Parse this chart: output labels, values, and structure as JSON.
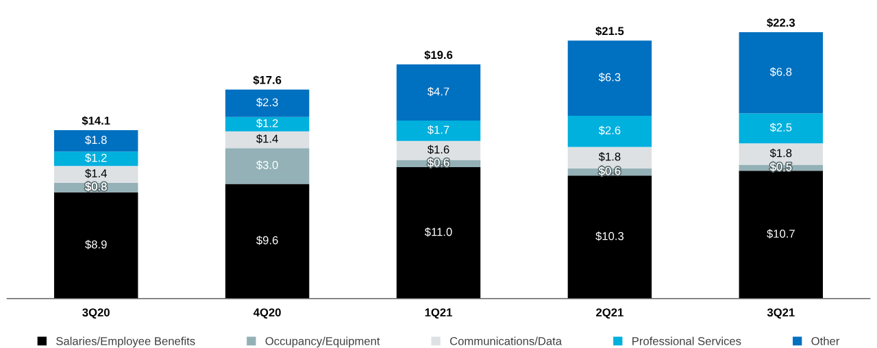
{
  "chart_data": {
    "type": "bar",
    "stacked": true,
    "categories": [
      "3Q20",
      "4Q20",
      "1Q21",
      "2Q21",
      "3Q21"
    ],
    "series": [
      {
        "name": "Salaries/Employee Benefits",
        "color": "#000000",
        "values": [
          8.9,
          9.6,
          11.0,
          10.3,
          10.7
        ],
        "value_labels": [
          "$8.9",
          "$9.6",
          "$11.0",
          "$10.3",
          "$10.7"
        ]
      },
      {
        "name": "Occupancy/Equipment",
        "color": "#93b1b6",
        "values": [
          0.8,
          3.0,
          0.6,
          0.6,
          0.5
        ],
        "value_labels": [
          "$0.8",
          "$3.0",
          "$0.6",
          "$0.6",
          "$0.5"
        ]
      },
      {
        "name": "Communications/Data",
        "color": "#dde1e4",
        "values": [
          1.4,
          1.4,
          1.6,
          1.8,
          1.8
        ],
        "value_labels": [
          "$1.4",
          "$1.4",
          "$1.6",
          "$1.8",
          "$1.8"
        ]
      },
      {
        "name": "Professional Services",
        "color": "#00b0dd",
        "values": [
          1.2,
          1.2,
          1.7,
          2.6,
          2.5
        ],
        "value_labels": [
          "$1.2",
          "$1.2",
          "$1.7",
          "$2.6",
          "$2.5"
        ]
      },
      {
        "name": "Other",
        "color": "#0070c0",
        "values": [
          1.8,
          2.3,
          4.7,
          6.3,
          6.8
        ],
        "value_labels": [
          "$1.8",
          "$2.3",
          "$4.7",
          "$6.3",
          "$6.8"
        ]
      }
    ],
    "totals": [
      "$14.1",
      "$17.6",
      "$19.6",
      "$21.5",
      "$22.3"
    ],
    "tick_labels": "x",
    "legend": "bottom",
    "grid": false
  }
}
